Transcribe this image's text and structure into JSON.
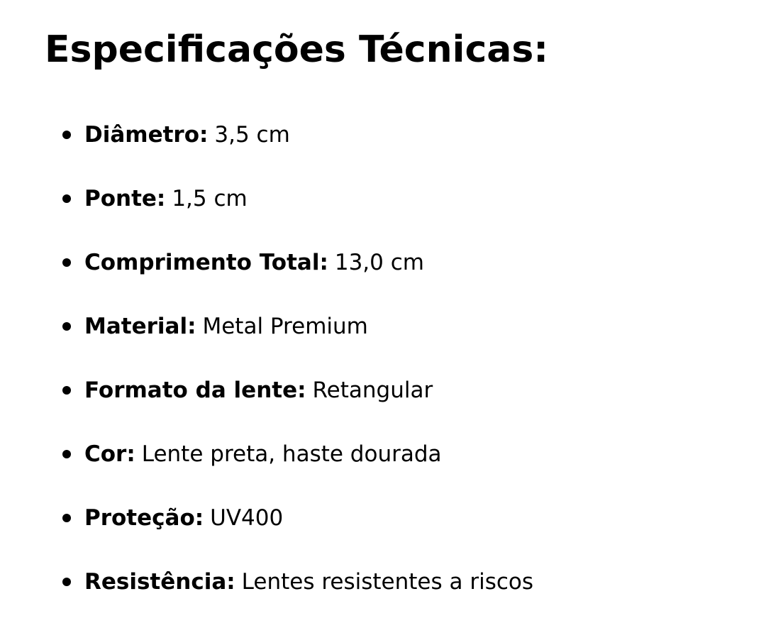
{
  "title": "Especificações Técnicas:",
  "specs": [
    {
      "label": "Diâmetro:",
      "value": "3,5 cm"
    },
    {
      "label": "Ponte:",
      "value": "1,5 cm"
    },
    {
      "label": "Comprimento Total:",
      "value": "13,0 cm"
    },
    {
      "label": "Material:",
      "value": "Metal Premium"
    },
    {
      "label": "Formato da lente:",
      "value": "Retangular"
    },
    {
      "label": "Cor:",
      "value": "Lente preta, haste dourada"
    },
    {
      "label": "Proteção:",
      "value": "UV400"
    },
    {
      "label": "Resistência:",
      "value": "Lentes resistentes a riscos"
    }
  ]
}
